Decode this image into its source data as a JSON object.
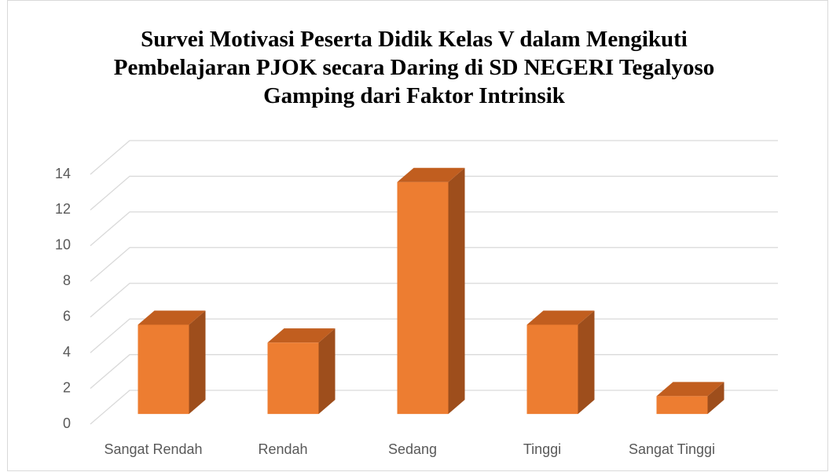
{
  "chart_data": {
    "type": "bar3d",
    "title": "Survei Motivasi Peserta Didik Kelas V dalam Mengikuti Pembelajaran PJOK secara Daring di SD NEGERI Tegalyoso Gamping dari Faktor Intrinsik",
    "categories": [
      "Sangat Rendah",
      "Rendah",
      "Sedang",
      "Tinggi",
      "Sangat Tinggi"
    ],
    "values": [
      5,
      4,
      13,
      5,
      1
    ],
    "color": "#ed7d31",
    "ylim": [
      0,
      14
    ],
    "yticks": [
      0,
      2,
      4,
      6,
      8,
      10,
      12,
      14
    ],
    "grid": true
  }
}
